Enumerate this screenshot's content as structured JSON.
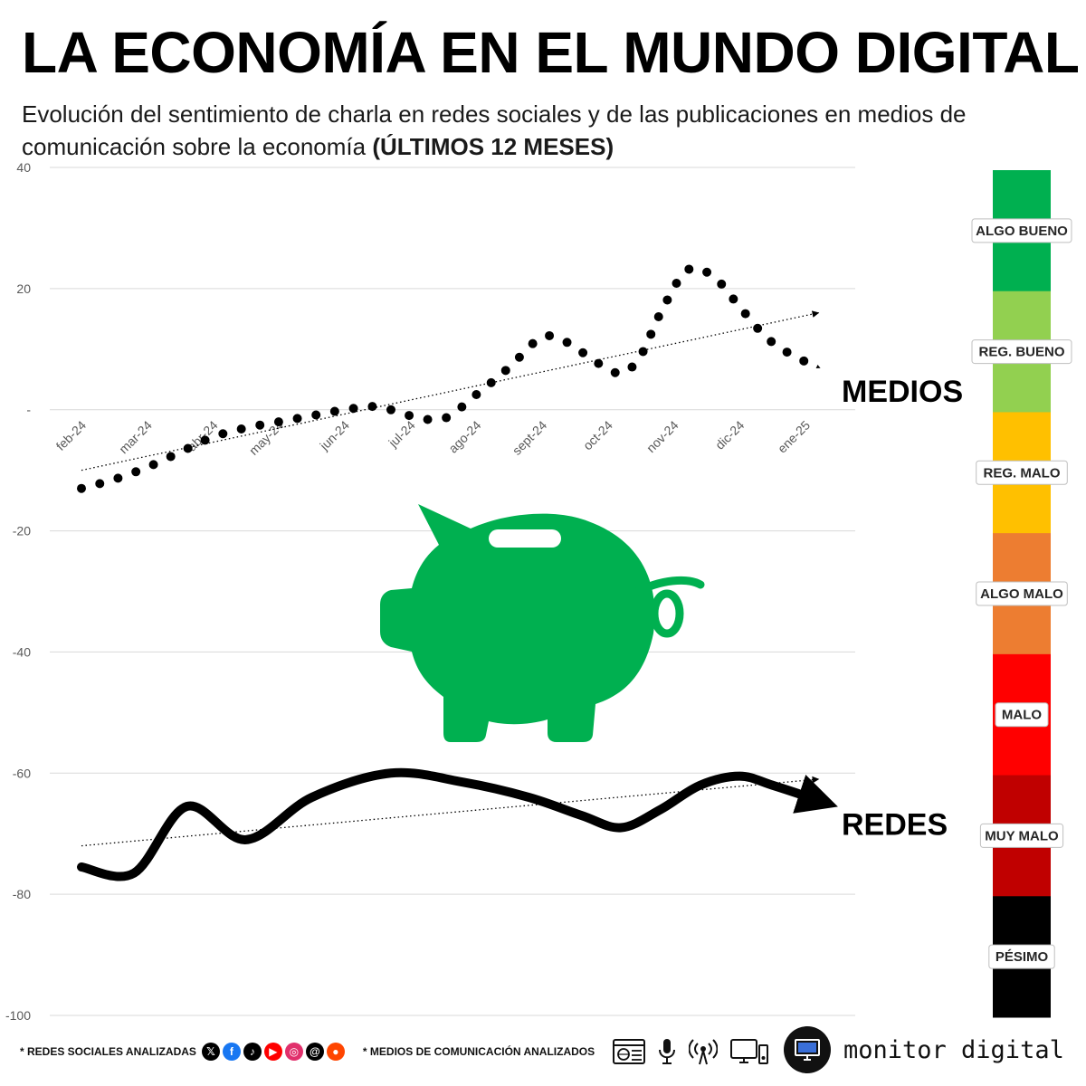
{
  "header": {
    "title": "LA ECONOMÍA EN EL MUNDO DIGITAL",
    "subtitle": "Evolución del sentimiento de charla en redes sociales y de las publicaciones en medios de comunicación sobre la economía",
    "subtitle_bold": "(ÚLTIMOS 12 MESES)"
  },
  "chart_data": {
    "type": "line",
    "ylim": [
      -100,
      40
    ],
    "yticks": [
      40,
      20,
      0,
      -20,
      -40,
      -60,
      -80,
      -100
    ],
    "ytick_labels": [
      "40",
      "20",
      "-",
      "-20",
      "-40",
      "-60",
      "-80",
      "-100"
    ],
    "x_labels": [
      "feb-24",
      "mar-24",
      "abr-24",
      "may-24",
      "jun-24",
      "jul-24",
      "ago-24",
      "sept-24",
      "oct-24",
      "nov-24",
      "dic-24",
      "ene-25"
    ],
    "grid": true,
    "series": [
      {
        "name": "MEDIOS",
        "style": "dotted",
        "x": [
          0,
          0.5,
          1,
          1.5,
          2,
          2.5,
          3,
          3.5,
          4,
          4.5,
          5,
          5.5,
          6,
          6.5,
          7,
          7.4,
          7.8,
          8.2,
          8.5,
          8.8,
          9.2,
          9.6,
          10,
          10.4,
          10.8,
          11.2
        ],
        "values": [
          -13,
          -11.5,
          -9.5,
          -7,
          -4.5,
          -3,
          -2,
          -1,
          0,
          0.5,
          -1,
          -1.5,
          2.5,
          7,
          12,
          11,
          8,
          6,
          9,
          16,
          23,
          22,
          17,
          12,
          9,
          7
        ],
        "trend": [
          -10,
          16
        ],
        "color": "#000000"
      },
      {
        "name": "REDES",
        "style": "solid",
        "x": [
          0,
          0.8,
          1.6,
          2.5,
          3.5,
          4.7,
          5.8,
          6.8,
          7.6,
          8.2,
          8.8,
          9.4,
          10,
          10.5,
          11.2
        ],
        "values": [
          -75.5,
          -76.5,
          -65.5,
          -71,
          -64,
          -60,
          -61.5,
          -64,
          -67,
          -69,
          -66,
          -62,
          -60.5,
          -62,
          -64.5
        ],
        "trend": [
          -72,
          -61
        ],
        "color": "#000000"
      }
    ],
    "scale": {
      "labels": [
        "ALGO BUENO",
        "REG. BUENO",
        "REG. MALO",
        "ALGO MALO",
        "MALO",
        "MUY MALO",
        "PÉSIMO"
      ],
      "colors": [
        "#00b050",
        "#92d050",
        "#ffc000",
        "#ed7d31",
        "#ff0000",
        "#c00000",
        "#000000"
      ]
    },
    "illustration": {
      "icon": "piggy-bank-icon",
      "color": "#00b050"
    }
  },
  "footer": {
    "redes_label": "* REDES SOCIALES ANALIZADAS",
    "redes_icons": [
      {
        "icon": "x-icon",
        "glyph": "𝕏",
        "color": "#000000"
      },
      {
        "icon": "facebook-icon",
        "glyph": "f",
        "color": "#1877f2"
      },
      {
        "icon": "tiktok-icon",
        "glyph": "♪",
        "color": "#000000"
      },
      {
        "icon": "youtube-icon",
        "glyph": "▶",
        "color": "#ff0000"
      },
      {
        "icon": "instagram-icon",
        "glyph": "◎",
        "color": "#e1306c"
      },
      {
        "icon": "threads-icon",
        "glyph": "@",
        "color": "#000000"
      },
      {
        "icon": "reddit-icon",
        "glyph": "●",
        "color": "#ff4500"
      }
    ],
    "medios_label": "* MEDIOS DE COMUNICACIÓN ANALIZADOS",
    "brand": "monitor digital"
  }
}
